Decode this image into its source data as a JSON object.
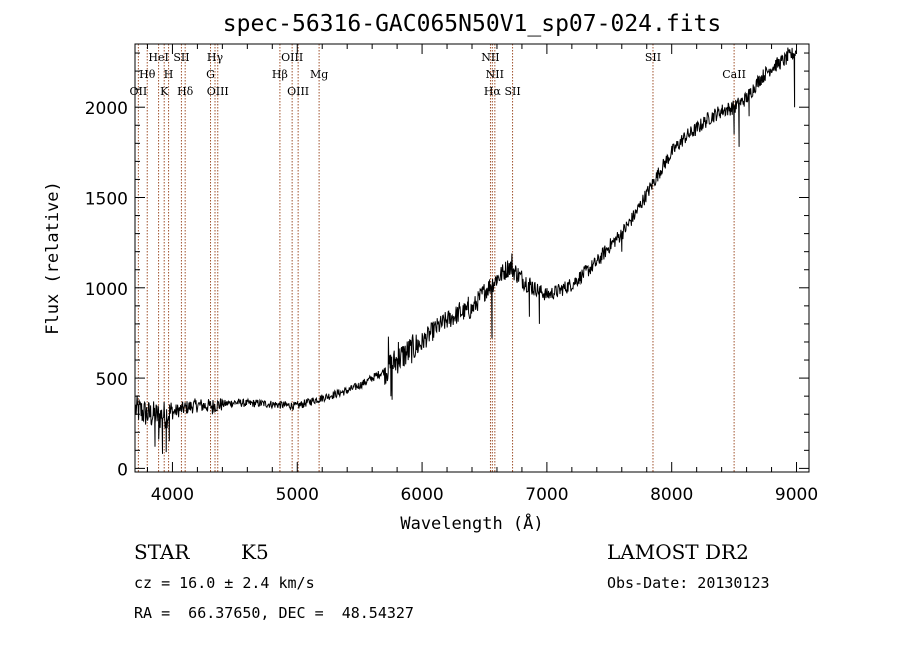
{
  "chart_data": {
    "type": "line",
    "title": "spec-56316-GAC065N50V1_sp07-024.fits",
    "xlabel": "Wavelength (Å)",
    "ylabel": "Flux (relative)",
    "xlim": [
      3700,
      9100
    ],
    "ylim": [
      -20,
      2350
    ],
    "x_ticks": [
      4000,
      5000,
      6000,
      7000,
      8000,
      9000
    ],
    "y_ticks": [
      0,
      500,
      1000,
      1500,
      2000
    ],
    "x_tick_labels": [
      "4000",
      "5000",
      "6000",
      "7000",
      "8000",
      "9000"
    ],
    "y_tick_labels": [
      "0",
      "500",
      "1000",
      "1500",
      "2000"
    ],
    "grid": false,
    "line_color": "#000000",
    "marker_color": "#a0522d",
    "lines": [
      {
        "name": "OII",
        "wave": 3727,
        "row": 3
      },
      {
        "name": "Hθ",
        "wave": 3798,
        "row": 2
      },
      {
        "name": "HeI",
        "wave": 3889,
        "row": 1
      },
      {
        "name": "K",
        "wave": 3934,
        "row": 3
      },
      {
        "name": "H",
        "wave": 3969,
        "row": 2
      },
      {
        "name": "SII",
        "wave": 4072,
        "row": 1
      },
      {
        "name": "Hδ",
        "wave": 4102,
        "row": 3
      },
      {
        "name": "Hγ",
        "wave": 4341,
        "row": 1
      },
      {
        "name": "G",
        "wave": 4305,
        "row": 2
      },
      {
        "name": "OIII",
        "wave": 4363,
        "row": 3
      },
      {
        "name": "OIII",
        "wave": 4959,
        "row": 1
      },
      {
        "name": "Hβ",
        "wave": 4861,
        "row": 2
      },
      {
        "name": "OIII",
        "wave": 5007,
        "row": 3
      },
      {
        "name": "Mg",
        "wave": 5175,
        "row": 2
      },
      {
        "name": "NII",
        "wave": 6548,
        "row": 1
      },
      {
        "name": "NII",
        "wave": 6583,
        "row": 2
      },
      {
        "name": "Hα",
        "wave": 6563,
        "row": 3
      },
      {
        "name": "SII",
        "wave": 6725,
        "row": 3
      },
      {
        "name": "SII",
        "wave": 7850,
        "row": 1
      },
      {
        "name": "CaII",
        "wave": 8500,
        "row": 2
      }
    ],
    "spectrum_continuum": [
      [
        3700,
        330
      ],
      [
        3800,
        300
      ],
      [
        3900,
        290
      ],
      [
        4000,
        310
      ],
      [
        4100,
        335
      ],
      [
        4200,
        350
      ],
      [
        4300,
        345
      ],
      [
        4400,
        355
      ],
      [
        4500,
        365
      ],
      [
        4600,
        360
      ],
      [
        4700,
        360
      ],
      [
        4800,
        355
      ],
      [
        4900,
        350
      ],
      [
        5000,
        345
      ],
      [
        5100,
        370
      ],
      [
        5200,
        390
      ],
      [
        5300,
        410
      ],
      [
        5400,
        430
      ],
      [
        5500,
        460
      ],
      [
        5600,
        500
      ],
      [
        5700,
        540
      ],
      [
        5800,
        600
      ],
      [
        5900,
        650
      ],
      [
        6000,
        700
      ],
      [
        6100,
        770
      ],
      [
        6200,
        820
      ],
      [
        6300,
        860
      ],
      [
        6400,
        880
      ],
      [
        6500,
        980
      ],
      [
        6600,
        1050
      ],
      [
        6700,
        1120
      ],
      [
        6800,
        1050
      ],
      [
        6900,
        1000
      ],
      [
        7000,
        960
      ],
      [
        7100,
        985
      ],
      [
        7200,
        1020
      ],
      [
        7300,
        1080
      ],
      [
        7400,
        1140
      ],
      [
        7500,
        1230
      ],
      [
        7600,
        1300
      ],
      [
        7700,
        1400
      ],
      [
        7800,
        1520
      ],
      [
        7900,
        1640
      ],
      [
        8000,
        1750
      ],
      [
        8100,
        1830
      ],
      [
        8200,
        1880
      ],
      [
        8300,
        1940
      ],
      [
        8400,
        1980
      ],
      [
        8500,
        2000
      ],
      [
        8600,
        2050
      ],
      [
        8700,
        2150
      ],
      [
        8800,
        2220
      ],
      [
        8900,
        2260
      ],
      [
        8980,
        2300
      ]
    ],
    "spectrum_features": [
      [
        3860,
        120
      ],
      [
        3890,
        160
      ],
      [
        3920,
        80
      ],
      [
        3950,
        90
      ],
      [
        3975,
        150
      ],
      [
        4320,
        300
      ],
      [
        5730,
        730
      ],
      [
        5750,
        400
      ],
      [
        5760,
        380
      ],
      [
        5810,
        700
      ],
      [
        6200,
        800
      ],
      [
        6300,
        920
      ],
      [
        6370,
        950
      ],
      [
        6560,
        720
      ],
      [
        6600,
        1070
      ],
      [
        6720,
        1190
      ],
      [
        6860,
        840
      ],
      [
        6940,
        800
      ],
      [
        7600,
        1200
      ],
      [
        8500,
        1850
      ],
      [
        8540,
        1780
      ],
      [
        8620,
        1950
      ],
      [
        8930,
        2330
      ],
      [
        8985,
        2000
      ],
      [
        8995,
        1000
      ]
    ]
  },
  "info": {
    "object_class": "STAR",
    "subclass": "K5",
    "survey": "LAMOST DR2",
    "cz": "cz = 16.0 ± 2.4 km/s",
    "obs_date": "Obs-Date: 20130123",
    "coords": "RA =  66.37650, DEC =  48.54327"
  }
}
